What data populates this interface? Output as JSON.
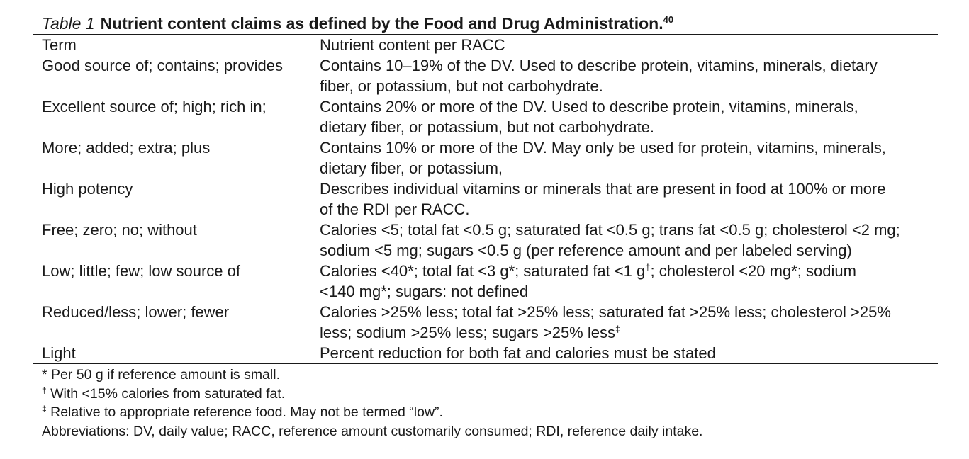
{
  "caption": {
    "label": "Table 1",
    "title": "Nutrient content claims as defined by the Food and Drug Administration.",
    "ref": "40"
  },
  "header": {
    "term": "Term",
    "content": "Nutrient content per RACC"
  },
  "rows": [
    {
      "term": "Good source of; contains; provides",
      "lines": [
        "Contains 10–19% of the DV. Used to describe protein, vitamins, minerals, dietary",
        "fiber, or potassium, but not carbohydrate."
      ]
    },
    {
      "term": "Excellent source of; high; rich in;",
      "lines": [
        "Contains 20% or more of the DV. Used to describe protein, vitamins, minerals,",
        "dietary fiber, or potassium, but not carbohydrate."
      ]
    },
    {
      "term": "More; added; extra; plus",
      "lines": [
        "Contains 10% or more of the DV. May only be used for protein, vitamins, minerals,",
        "dietary fiber, or potassium,"
      ]
    },
    {
      "term": "High potency",
      "lines": [
        "Describes individual vitamins or minerals that are present in food at 100% or more",
        "of the RDI per RACC."
      ]
    },
    {
      "term": "Free; zero; no; without",
      "lines": [
        "Calories <5; total fat <0.5 g; saturated fat <0.5 g; trans fat <0.5 g; cholesterol <2 mg;",
        "sodium <5 mg; sugars <0.5 g (per reference amount and per labeled serving)"
      ]
    },
    {
      "term": "Low; little; few; low source of",
      "line1_a": "Calories <40*; total fat <3 g*; saturated fat <1 g",
      "line1_sup": "†",
      "line1_b": "; cholesterol <20 mg*; sodium",
      "line2": "<140 mg*; sugars: not defined"
    },
    {
      "term": "Reduced/less; lower; fewer",
      "line1": "Calories >25% less; total fat >25% less; saturated fat >25% less; cholesterol >25%",
      "line2_a": "less; sodium >25% less; sugars >25% less",
      "line2_sup": "‡"
    },
    {
      "term": "Light",
      "lines": [
        "Percent reduction for both fat and calories must be stated"
      ]
    }
  ],
  "footnotes": {
    "star": "* Per 50 g if reference amount is small.",
    "dagger_mark": "†",
    "dagger_text": " With <15% calories from saturated fat.",
    "ddagger_mark": "‡",
    "ddagger_text": " Relative to appropriate reference food. May not be termed “low”.",
    "abbreviations": "Abbreviations: DV, daily value; RACC, reference amount customarily consumed; RDI, reference daily intake."
  }
}
